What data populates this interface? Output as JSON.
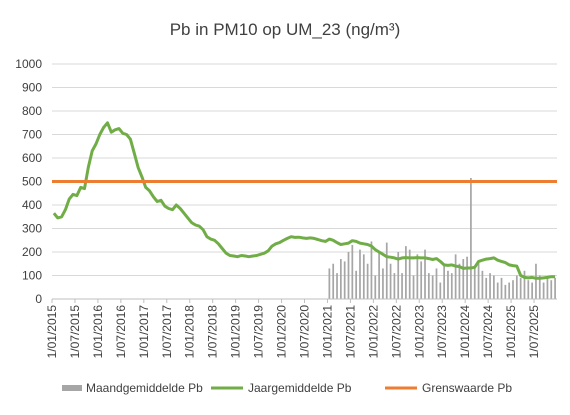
{
  "chart_data": {
    "type": "line",
    "title": "Pb in PM10 op UM_23 (ng/m³)",
    "xlabel": "",
    "ylabel": "",
    "ylim": [
      0,
      1000
    ],
    "yticks": [
      "0",
      "100",
      "200",
      "300",
      "400",
      "500",
      "600",
      "700",
      "800",
      "900",
      "1000"
    ],
    "xlim": [
      "2015-01-01",
      "2025-12-31"
    ],
    "xticks": [
      "1/01/2015",
      "1/07/2015",
      "1/01/2016",
      "1/07/2016",
      "1/01/2017",
      "1/07/2017",
      "1/01/2018",
      "1/07/2018",
      "1/01/2019",
      "1/07/2019",
      "1/01/2020",
      "1/07/2020",
      "1/01/2021",
      "1/07/2021",
      "1/01/2022",
      "1/07/2022",
      "1/01/2023",
      "1/07/2023",
      "1/01/2024",
      "1/07/2024",
      "1/01/2025",
      "1/07/2025"
    ],
    "grid": "horizontal",
    "legend_position": "bottom",
    "colors": {
      "maand": "#a6a6a6",
      "jaar": "#70ad47",
      "grens": "#ed7d31",
      "grid": "#d9d9d9",
      "axis": "#bfbfbf",
      "text": "#404040"
    },
    "series": [
      {
        "name": "Maandgemiddelde Pb",
        "type": "bar",
        "points": [
          [
            "2021-01",
            130
          ],
          [
            "2021-02",
            150
          ],
          [
            "2021-03",
            110
          ],
          [
            "2021-04",
            170
          ],
          [
            "2021-05",
            160
          ],
          [
            "2021-06",
            200
          ],
          [
            "2021-07",
            230
          ],
          [
            "2021-08",
            120
          ],
          [
            "2021-09",
            210
          ],
          [
            "2021-10",
            190
          ],
          [
            "2021-11",
            150
          ],
          [
            "2021-12",
            245
          ],
          [
            "2022-01",
            100
          ],
          [
            "2022-02",
            200
          ],
          [
            "2022-03",
            130
          ],
          [
            "2022-04",
            240
          ],
          [
            "2022-05",
            150
          ],
          [
            "2022-06",
            110
          ],
          [
            "2022-07",
            200
          ],
          [
            "2022-08",
            110
          ],
          [
            "2022-09",
            225
          ],
          [
            "2022-10",
            210
          ],
          [
            "2022-11",
            100
          ],
          [
            "2022-12",
            190
          ],
          [
            "2023-01",
            160
          ],
          [
            "2023-02",
            210
          ],
          [
            "2023-03",
            110
          ],
          [
            "2023-04",
            100
          ],
          [
            "2023-05",
            130
          ],
          [
            "2023-06",
            70
          ],
          [
            "2023-07",
            150
          ],
          [
            "2023-08",
            120
          ],
          [
            "2023-09",
            110
          ],
          [
            "2023-10",
            190
          ],
          [
            "2023-11",
            150
          ],
          [
            "2023-12",
            170
          ],
          [
            "2024-01",
            180
          ],
          [
            "2024-02",
            515
          ],
          [
            "2024-03",
            140
          ],
          [
            "2024-04",
            160
          ],
          [
            "2024-05",
            120
          ],
          [
            "2024-06",
            90
          ],
          [
            "2024-07",
            110
          ],
          [
            "2024-08",
            100
          ],
          [
            "2024-09",
            70
          ],
          [
            "2024-10",
            90
          ],
          [
            "2024-11",
            60
          ],
          [
            "2024-12",
            70
          ],
          [
            "2025-01",
            80
          ],
          [
            "2025-02",
            100
          ],
          [
            "2025-03",
            90
          ],
          [
            "2025-04",
            120
          ],
          [
            "2025-05",
            80
          ],
          [
            "2025-06",
            70
          ],
          [
            "2025-07",
            150
          ],
          [
            "2025-08",
            100
          ],
          [
            "2025-09",
            70
          ],
          [
            "2025-10",
            90
          ],
          [
            "2025-11",
            80
          ],
          [
            "2025-12",
            90
          ]
        ]
      },
      {
        "name": "Jaargemiddelde Pb",
        "type": "line",
        "points": [
          [
            "2015-01",
            365
          ],
          [
            "2015-02",
            345
          ],
          [
            "2015-03",
            350
          ],
          [
            "2015-04",
            380
          ],
          [
            "2015-05",
            425
          ],
          [
            "2015-06",
            445
          ],
          [
            "2015-07",
            440
          ],
          [
            "2015-08",
            475
          ],
          [
            "2015-09",
            470
          ],
          [
            "2015-10",
            560
          ],
          [
            "2015-11",
            630
          ],
          [
            "2015-12",
            660
          ],
          [
            "2016-01",
            700
          ],
          [
            "2016-02",
            730
          ],
          [
            "2016-03",
            750
          ],
          [
            "2016-04",
            710
          ],
          [
            "2016-05",
            720
          ],
          [
            "2016-06",
            725
          ],
          [
            "2016-07",
            705
          ],
          [
            "2016-08",
            700
          ],
          [
            "2016-09",
            680
          ],
          [
            "2016-10",
            620
          ],
          [
            "2016-11",
            560
          ],
          [
            "2016-12",
            520
          ],
          [
            "2017-01",
            475
          ],
          [
            "2017-02",
            460
          ],
          [
            "2017-03",
            435
          ],
          [
            "2017-04",
            415
          ],
          [
            "2017-05",
            420
          ],
          [
            "2017-06",
            395
          ],
          [
            "2017-07",
            385
          ],
          [
            "2017-08",
            380
          ],
          [
            "2017-09",
            400
          ],
          [
            "2017-10",
            385
          ],
          [
            "2017-11",
            365
          ],
          [
            "2017-12",
            345
          ],
          [
            "2018-01",
            325
          ],
          [
            "2018-02",
            315
          ],
          [
            "2018-03",
            310
          ],
          [
            "2018-04",
            295
          ],
          [
            "2018-05",
            265
          ],
          [
            "2018-06",
            255
          ],
          [
            "2018-07",
            250
          ],
          [
            "2018-08",
            235
          ],
          [
            "2018-09",
            215
          ],
          [
            "2018-10",
            195
          ],
          [
            "2018-11",
            185
          ],
          [
            "2018-12",
            183
          ],
          [
            "2019-01",
            180
          ],
          [
            "2019-02",
            185
          ],
          [
            "2019-03",
            183
          ],
          [
            "2019-04",
            180
          ],
          [
            "2019-05",
            183
          ],
          [
            "2019-06",
            185
          ],
          [
            "2019-07",
            190
          ],
          [
            "2019-08",
            195
          ],
          [
            "2019-09",
            205
          ],
          [
            "2019-10",
            225
          ],
          [
            "2019-11",
            235
          ],
          [
            "2019-12",
            240
          ],
          [
            "2020-01",
            250
          ],
          [
            "2020-02",
            258
          ],
          [
            "2020-03",
            265
          ],
          [
            "2020-04",
            262
          ],
          [
            "2020-05",
            263
          ],
          [
            "2020-06",
            260
          ],
          [
            "2020-07",
            258
          ],
          [
            "2020-08",
            260
          ],
          [
            "2020-09",
            258
          ],
          [
            "2020-10",
            253
          ],
          [
            "2020-11",
            248
          ],
          [
            "2020-12",
            245
          ],
          [
            "2021-01",
            255
          ],
          [
            "2021-02",
            250
          ],
          [
            "2021-03",
            240
          ],
          [
            "2021-04",
            232
          ],
          [
            "2021-05",
            235
          ],
          [
            "2021-06",
            238
          ],
          [
            "2021-07",
            248
          ],
          [
            "2021-08",
            245
          ],
          [
            "2021-09",
            238
          ],
          [
            "2021-10",
            235
          ],
          [
            "2021-11",
            232
          ],
          [
            "2021-12",
            225
          ],
          [
            "2022-01",
            210
          ],
          [
            "2022-02",
            200
          ],
          [
            "2022-03",
            190
          ],
          [
            "2022-04",
            180
          ],
          [
            "2022-05",
            178
          ],
          [
            "2022-06",
            175
          ],
          [
            "2022-07",
            170
          ],
          [
            "2022-08",
            175
          ],
          [
            "2022-09",
            176
          ],
          [
            "2022-10",
            175
          ],
          [
            "2022-11",
            175
          ],
          [
            "2022-12",
            176
          ],
          [
            "2023-01",
            175
          ],
          [
            "2023-02",
            175
          ],
          [
            "2023-03",
            172
          ],
          [
            "2023-04",
            168
          ],
          [
            "2023-05",
            172
          ],
          [
            "2023-06",
            160
          ],
          [
            "2023-07",
            145
          ],
          [
            "2023-08",
            143
          ],
          [
            "2023-09",
            145
          ],
          [
            "2023-10",
            140
          ],
          [
            "2023-11",
            138
          ],
          [
            "2023-12",
            130
          ],
          [
            "2024-01",
            132
          ],
          [
            "2024-02",
            132
          ],
          [
            "2024-03",
            135
          ],
          [
            "2024-04",
            160
          ],
          [
            "2024-05",
            165
          ],
          [
            "2024-06",
            170
          ],
          [
            "2024-07",
            172
          ],
          [
            "2024-08",
            175
          ],
          [
            "2024-09",
            165
          ],
          [
            "2024-10",
            160
          ],
          [
            "2024-11",
            155
          ],
          [
            "2024-12",
            145
          ],
          [
            "2025-01",
            142
          ],
          [
            "2025-02",
            140
          ],
          [
            "2025-03",
            100
          ],
          [
            "2025-04",
            92
          ],
          [
            "2025-05",
            90
          ],
          [
            "2025-06",
            92
          ],
          [
            "2025-07",
            88
          ],
          [
            "2025-08",
            88
          ],
          [
            "2025-09",
            90
          ],
          [
            "2025-10",
            92
          ],
          [
            "2025-11",
            95
          ],
          [
            "2025-12",
            95
          ]
        ]
      },
      {
        "name": "Grenswaarde Pb",
        "type": "line",
        "points": [
          [
            "2015-01",
            500
          ],
          [
            "2025-12",
            500
          ]
        ]
      }
    ]
  }
}
